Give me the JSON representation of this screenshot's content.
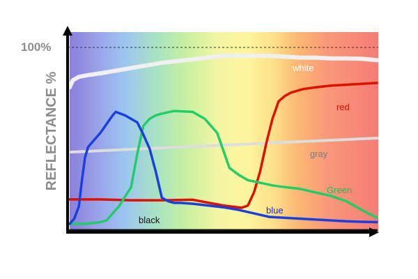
{
  "chart_data": {
    "type": "line",
    "ylabel": "REFLECTANCE %",
    "xlabel": "",
    "y_reference": {
      "label": "100%",
      "value": 100,
      "style": "dashed"
    },
    "ylim": [
      0,
      106
    ],
    "xlim": [
      0,
      100
    ],
    "background": "visible spectrum gradient (violet to red)",
    "grid": false,
    "legend": "inline labels",
    "series": [
      {
        "name": "white",
        "color": "#f0f0f0",
        "x": [
          0,
          1,
          3,
          6,
          10,
          20,
          30,
          40,
          45,
          50,
          55,
          60,
          65,
          70,
          75,
          80,
          85,
          90,
          95,
          100
        ],
        "y": [
          78,
          82,
          84,
          85,
          86,
          89,
          92,
          94,
          95,
          96,
          96,
          96,
          96,
          95.5,
          95,
          95,
          94.5,
          94.5,
          94.3,
          93.5
        ]
      },
      {
        "name": "gray",
        "color": "#dddddd",
        "x": [
          0,
          100
        ],
        "y": [
          41,
          49
        ]
      },
      {
        "name": "red",
        "color": "#dd1100",
        "x": [
          0,
          10,
          20,
          30,
          40,
          50,
          56,
          58,
          60,
          62,
          64,
          66,
          68,
          70,
          72,
          76,
          80,
          85,
          90,
          95,
          100
        ],
        "y": [
          14,
          14,
          13.5,
          13.5,
          13.8,
          10.5,
          9.2,
          10.5,
          18,
          30,
          46,
          60,
          70,
          73,
          75,
          77,
          78,
          79,
          79.5,
          80,
          80.5
        ]
      },
      {
        "name": "Green",
        "color": "#22cc66",
        "x": [
          0,
          5,
          10,
          12,
          16,
          20,
          22,
          24,
          26,
          28,
          30,
          34,
          40,
          44,
          48,
          50,
          52,
          55,
          58,
          62,
          66,
          70,
          75,
          80,
          85,
          90,
          95,
          100
        ],
        "y": [
          0,
          0,
          1,
          2,
          10,
          21,
          40,
          56,
          60,
          62,
          63,
          64.5,
          64,
          60,
          52,
          42,
          32,
          28,
          25,
          23.5,
          22,
          21,
          20,
          18,
          16,
          13,
          8,
          3.5
        ]
      },
      {
        "name": "blue",
        "color": "#1a3fdd",
        "x": [
          0,
          1.5,
          3,
          4,
          5,
          6,
          8,
          10,
          14,
          15,
          18,
          22,
          24,
          26,
          28,
          30,
          32,
          34,
          36,
          40,
          45,
          50,
          55,
          60,
          65,
          70,
          75,
          80,
          85,
          90,
          95,
          100
        ],
        "y": [
          0,
          3,
          10,
          25,
          38,
          44,
          48,
          52,
          62,
          64,
          62,
          58,
          51,
          43,
          30,
          15,
          13,
          12,
          12,
          11.5,
          10.5,
          9.5,
          8,
          6,
          4,
          3.5,
          3,
          2.5,
          2,
          1.5,
          1.2,
          1
        ]
      },
      {
        "name": "black",
        "color": "#111111",
        "x": [
          0,
          100
        ],
        "y": [
          -3.5,
          -3.5
        ]
      }
    ],
    "annotations": [
      {
        "text": "white",
        "color": "#ffffff"
      },
      {
        "text": "red",
        "color": "#cc1100"
      },
      {
        "text": "gray",
        "color": "#7a7a7a"
      },
      {
        "text": "Green",
        "color": "#22bb55"
      },
      {
        "text": "blue",
        "color": "#1a2fcc"
      },
      {
        "text": "black",
        "color": "#111111"
      }
    ]
  }
}
